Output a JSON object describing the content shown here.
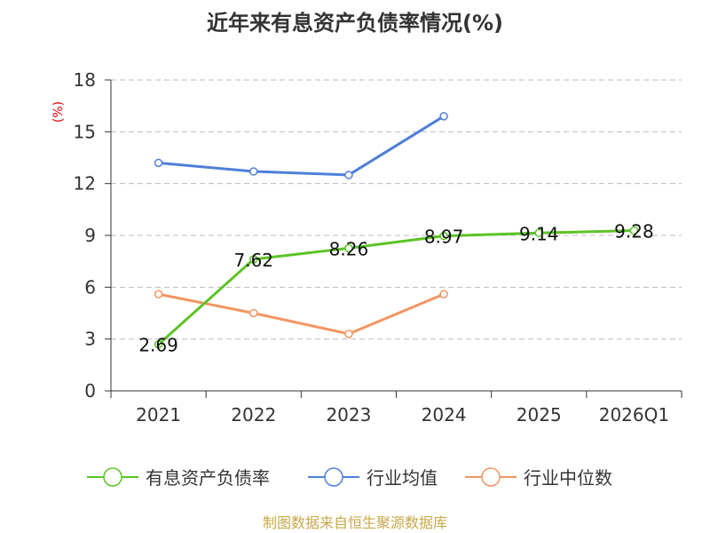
{
  "title": "近年来有息资产负债率情况(%)",
  "unit_label": "(%)",
  "footer": "制图数据来自恒生聚源数据库",
  "chart_data": {
    "type": "line",
    "categories": [
      "2021",
      "2022",
      "2023",
      "2024",
      "2025",
      "2026Q1"
    ],
    "ylim": [
      0,
      18
    ],
    "yticks": [
      0,
      3,
      6,
      9,
      12,
      15,
      18
    ],
    "grid": true,
    "legend_position": "bottom",
    "series": [
      {
        "name": "有息资产负债率",
        "color": "#5cc326",
        "values": [
          2.69,
          7.62,
          8.26,
          8.97,
          9.14,
          9.28
        ],
        "labels": [
          "2.69",
          "7.62",
          "8.26",
          "8.97",
          "9.14",
          "9.28"
        ]
      },
      {
        "name": "行业均值",
        "color": "#4f7fd8",
        "values": [
          13.2,
          12.7,
          12.5,
          15.9,
          null,
          null
        ]
      },
      {
        "name": "行业中位数",
        "color": "#f39562",
        "values": [
          5.6,
          4.5,
          3.3,
          5.6,
          null,
          null
        ]
      }
    ]
  }
}
